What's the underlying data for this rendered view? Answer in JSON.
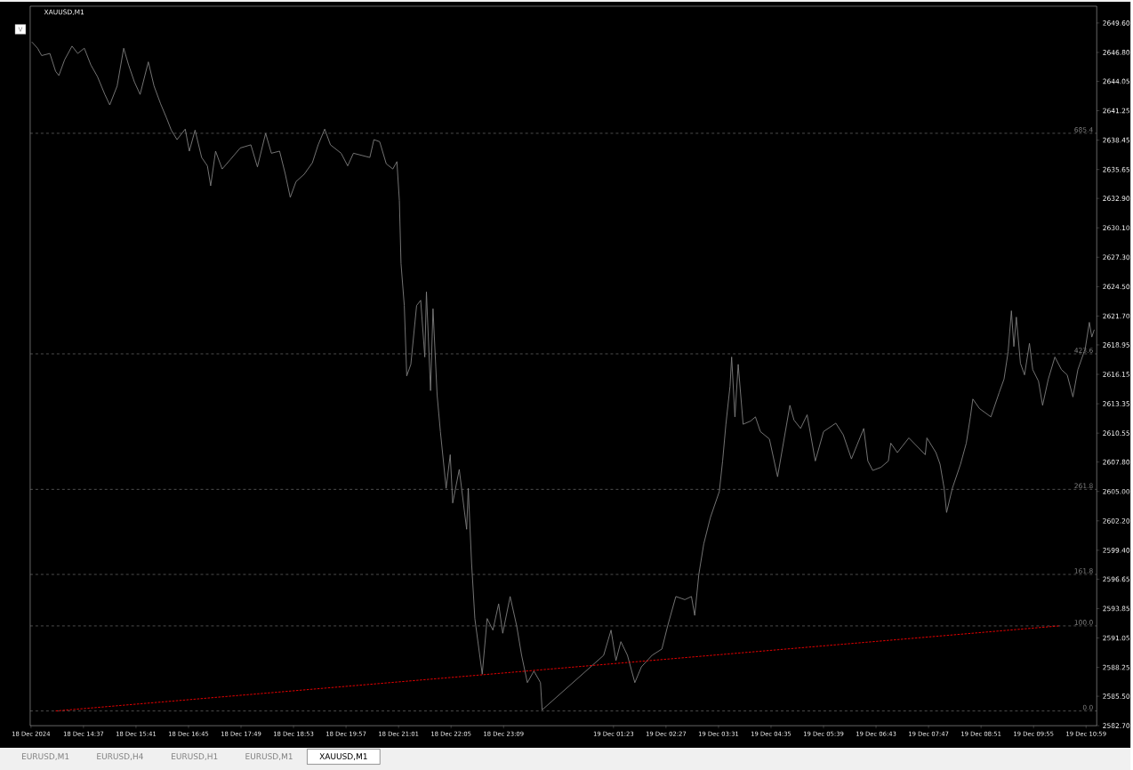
{
  "chart_data": {
    "type": "line",
    "title": "XAUUSD,M1",
    "xlim": [
      "2024-12-18T13:32",
      "2024-12-19T11:12"
    ],
    "ylim": [
      2582.7,
      2651.2
    ],
    "xticks": [
      {
        "value": "2024-12-18T13:33",
        "label": "18 Dec 2024"
      },
      {
        "value": "2024-12-18T14:37",
        "label": "18 Dec 14:37"
      },
      {
        "value": "2024-12-18T15:41",
        "label": "18 Dec 15:41"
      },
      {
        "value": "2024-12-18T16:45",
        "label": "18 Dec 16:45"
      },
      {
        "value": "2024-12-18T17:49",
        "label": "18 Dec 17:49"
      },
      {
        "value": "2024-12-18T18:53",
        "label": "18 Dec 18:53"
      },
      {
        "value": "2024-12-18T19:57",
        "label": "18 Dec 19:57"
      },
      {
        "value": "2024-12-18T21:01",
        "label": "18 Dec 21:01"
      },
      {
        "value": "2024-12-18T22:05",
        "label": "18 Dec 22:05"
      },
      {
        "value": "2024-12-18T23:09",
        "label": "18 Dec 23:09"
      },
      {
        "value": "2024-12-19T01:23",
        "label": "19 Dec 01:23"
      },
      {
        "value": "2024-12-19T02:27",
        "label": "19 Dec 02:27"
      },
      {
        "value": "2024-12-19T03:31",
        "label": "19 Dec 03:31"
      },
      {
        "value": "2024-12-19T04:35",
        "label": "19 Dec 04:35"
      },
      {
        "value": "2024-12-19T05:39",
        "label": "19 Dec 05:39"
      },
      {
        "value": "2024-12-19T06:43",
        "label": "19 Dec 06:43"
      },
      {
        "value": "2024-12-19T07:47",
        "label": "19 Dec 07:47"
      },
      {
        "value": "2024-12-19T08:51",
        "label": "19 Dec 08:51"
      },
      {
        "value": "2024-12-19T09:55",
        "label": "19 Dec 09:55"
      },
      {
        "value": "2024-12-19T10:59",
        "label": "19 Dec 10:59"
      }
    ],
    "yticks": [
      {
        "value": 2649.6,
        "label": "2649.60"
      },
      {
        "value": 2646.8,
        "label": "2646.80"
      },
      {
        "value": 2644.05,
        "label": "2644.05"
      },
      {
        "value": 2641.25,
        "label": "2641.25"
      },
      {
        "value": 2638.45,
        "label": "2638.45"
      },
      {
        "value": 2635.65,
        "label": "2635.65"
      },
      {
        "value": 2632.9,
        "label": "2632.90"
      },
      {
        "value": 2630.1,
        "label": "2630.10"
      },
      {
        "value": 2627.3,
        "label": "2627.30"
      },
      {
        "value": 2624.5,
        "label": "2624.50"
      },
      {
        "value": 2621.7,
        "label": "2621.70"
      },
      {
        "value": 2618.95,
        "label": "2618.95"
      },
      {
        "value": 2616.15,
        "label": "2616.15"
      },
      {
        "value": 2613.35,
        "label": "2613.35"
      },
      {
        "value": 2610.55,
        "label": "2610.55"
      },
      {
        "value": 2607.8,
        "label": "2607.80"
      },
      {
        "value": 2605.0,
        "label": "2605.00"
      },
      {
        "value": 2602.2,
        "label": "2602.20"
      },
      {
        "value": 2599.4,
        "label": "2599.40"
      },
      {
        "value": 2596.65,
        "label": "2596.65"
      },
      {
        "value": 2593.85,
        "label": "2593.85"
      },
      {
        "value": 2591.05,
        "label": "2591.05"
      },
      {
        "value": 2588.25,
        "label": "2588.25"
      },
      {
        "value": 2585.5,
        "label": "2585.50"
      },
      {
        "value": 2582.7,
        "label": "2582.70"
      }
    ],
    "series": [
      {
        "color": "#808080",
        "x": [
          "2024-12-18T13:34",
          "2024-12-18T13:41",
          "2024-12-18T13:46",
          "2024-12-18T13:56",
          "2024-12-18T14:03",
          "2024-12-18T14:07",
          "2024-12-18T14:14",
          "2024-12-18T14:23",
          "2024-12-18T14:30",
          "2024-12-18T14:38",
          "2024-12-18T14:46",
          "2024-12-18T14:54",
          "2024-12-18T15:03",
          "2024-12-18T15:09",
          "2024-12-18T15:18",
          "2024-12-18T15:26",
          "2024-12-18T15:32",
          "2024-12-18T15:39",
          "2024-12-18T15:46",
          "2024-12-18T15:56",
          "2024-12-18T16:03",
          "2024-12-18T16:11",
          "2024-12-18T16:18",
          "2024-12-18T16:24",
          "2024-12-18T16:31",
          "2024-12-18T16:41",
          "2024-12-18T16:46",
          "2024-12-18T16:53",
          "2024-12-18T17:01",
          "2024-12-18T17:08",
          "2024-12-18T17:12",
          "2024-12-18T17:18",
          "2024-12-18T17:26",
          "2024-12-18T17:36",
          "2024-12-18T17:48",
          "2024-12-18T18:01",
          "2024-12-18T18:09",
          "2024-12-18T18:19",
          "2024-12-18T18:26",
          "2024-12-18T18:36",
          "2024-12-18T18:43",
          "2024-12-18T18:49",
          "2024-12-18T18:56",
          "2024-12-18T19:06",
          "2024-12-18T19:16",
          "2024-12-18T19:23",
          "2024-12-18T19:31",
          "2024-12-18T19:38",
          "2024-12-18T19:51",
          "2024-12-18T19:59",
          "2024-12-18T20:06",
          "2024-12-18T20:16",
          "2024-12-18T20:26",
          "2024-12-18T20:31",
          "2024-12-18T20:38",
          "2024-12-18T20:46",
          "2024-12-18T20:54",
          "2024-12-18T20:59",
          "2024-12-18T21:02",
          "2024-12-18T21:04",
          "2024-12-18T21:08",
          "2024-12-18T21:11",
          "2024-12-18T21:16",
          "2024-12-18T21:23",
          "2024-12-18T21:28",
          "2024-12-18T21:33",
          "2024-12-18T21:35",
          "2024-12-18T21:40",
          "2024-12-18T21:43",
          "2024-12-18T21:48",
          "2024-12-18T21:52",
          "2024-12-18T21:59",
          "2024-12-18T22:04",
          "2024-12-18T22:07",
          "2024-12-18T22:15",
          "2024-12-18T22:24",
          "2024-12-18T22:26",
          "2024-12-18T22:30",
          "2024-12-18T22:34",
          "2024-12-18T22:43",
          "2024-12-18T22:49",
          "2024-12-18T22:56",
          "2024-12-18T23:03",
          "2024-12-18T23:08",
          "2024-12-18T23:17",
          "2024-12-18T23:25",
          "2024-12-18T23:31",
          "2024-12-18T23:38",
          "2024-12-18T23:46",
          "2024-12-18T23:54",
          "2024-12-18T23:56",
          "2024-12-19T01:11",
          "2024-12-19T01:20",
          "2024-12-19T01:26",
          "2024-12-19T01:32",
          "2024-12-19T01:40",
          "2024-12-19T01:49",
          "2024-12-19T01:57",
          "2024-12-19T02:10",
          "2024-12-19T02:22",
          "2024-12-19T02:29",
          "2024-12-19T02:39",
          "2024-12-19T02:50",
          "2024-12-19T02:58",
          "2024-12-19T03:02",
          "2024-12-19T03:07",
          "2024-12-19T03:13",
          "2024-12-19T03:21",
          "2024-12-19T03:32",
          "2024-12-19T03:36",
          "2024-12-19T03:40",
          "2024-12-19T03:45",
          "2024-12-19T03:47",
          "2024-12-19T03:51",
          "2024-12-19T03:55",
          "2024-12-19T04:01",
          "2024-12-19T04:10",
          "2024-12-19T04:16",
          "2024-12-19T04:22",
          "2024-12-19T04:33",
          "2024-12-19T04:43",
          "2024-12-19T04:58",
          "2024-12-19T05:03",
          "2024-12-19T05:11",
          "2024-12-19T05:19",
          "2024-12-19T05:29",
          "2024-12-19T05:39",
          "2024-12-19T05:54",
          "2024-12-19T06:03",
          "2024-12-19T06:13",
          "2024-12-19T06:28",
          "2024-12-19T06:33",
          "2024-12-19T06:39",
          "2024-12-19T06:49",
          "2024-12-19T06:58",
          "2024-12-19T07:01",
          "2024-12-19T07:09",
          "2024-12-19T07:23",
          "2024-12-19T07:33",
          "2024-12-19T07:43",
          "2024-12-19T07:45",
          "2024-12-19T07:56",
          "2024-12-19T08:01",
          "2024-12-19T08:06",
          "2024-12-19T08:09",
          "2024-12-19T08:16",
          "2024-12-19T08:26",
          "2024-12-19T08:33",
          "2024-12-19T08:38",
          "2024-12-19T08:41",
          "2024-12-19T08:49",
          "2024-12-19T09:03",
          "2024-12-19T09:13",
          "2024-12-19T09:19",
          "2024-12-19T09:24",
          "2024-12-19T09:28",
          "2024-12-19T09:31",
          "2024-12-19T09:34",
          "2024-12-19T09:39",
          "2024-12-19T09:44",
          "2024-12-19T09:50",
          "2024-12-19T09:54",
          "2024-12-19T10:01",
          "2024-12-19T10:06",
          "2024-12-19T10:13",
          "2024-12-19T10:21",
          "2024-12-19T10:29",
          "2024-12-19T10:36",
          "2024-12-19T10:43",
          "2024-12-19T10:49",
          "2024-12-19T10:58",
          "2024-12-19T11:03",
          "2024-12-19T11:06",
          "2024-12-19T11:09"
        ],
        "values": [
          2647.8,
          2647.2,
          2646.5,
          2646.7,
          2645.0,
          2644.6,
          2646.1,
          2647.4,
          2646.7,
          2647.2,
          2645.6,
          2644.5,
          2642.8,
          2641.8,
          2643.6,
          2647.2,
          2645.6,
          2644.0,
          2642.8,
          2645.9,
          2643.6,
          2641.9,
          2640.6,
          2639.4,
          2638.5,
          2639.5,
          2637.4,
          2639.4,
          2636.8,
          2636.0,
          2634.1,
          2637.4,
          2635.7,
          2636.6,
          2637.7,
          2638.0,
          2635.9,
          2639.1,
          2637.2,
          2637.4,
          2635.2,
          2633.0,
          2634.5,
          2635.2,
          2636.3,
          2638.0,
          2639.5,
          2638.0,
          2637.2,
          2636.0,
          2637.2,
          2637.0,
          2636.8,
          2638.5,
          2638.3,
          2636.2,
          2635.7,
          2636.4,
          2632.7,
          2626.7,
          2622.7,
          2616.0,
          2617.1,
          2622.7,
          2623.2,
          2617.8,
          2624.0,
          2614.6,
          2622.4,
          2614.2,
          2610.7,
          2605.3,
          2608.5,
          2603.9,
          2607.1,
          2601.4,
          2605.3,
          2598.2,
          2592.9,
          2587.6,
          2592.9,
          2591.8,
          2594.3,
          2591.5,
          2595.0,
          2592.2,
          2589.4,
          2586.8,
          2587.9,
          2586.8,
          2584.2,
          2589.4,
          2591.8,
          2588.9,
          2590.7,
          2589.4,
          2586.8,
          2588.3,
          2589.4,
          2590.0,
          2592.2,
          2595.0,
          2594.7,
          2595.0,
          2593.2,
          2597.1,
          2600.0,
          2602.5,
          2605.0,
          2607.9,
          2611.4,
          2615.0,
          2617.8,
          2612.1,
          2617.1,
          2611.4,
          2611.7,
          2612.1,
          2610.7,
          2610.0,
          2606.4,
          2613.2,
          2611.8,
          2611.0,
          2612.3,
          2607.9,
          2610.7,
          2611.5,
          2610.4,
          2608.1,
          2611.0,
          2607.9,
          2607.0,
          2607.3,
          2607.9,
          2609.6,
          2608.7,
          2610.1,
          2609.3,
          2608.5,
          2610.1,
          2608.7,
          2607.6,
          2605.3,
          2603.0,
          2605.3,
          2607.6,
          2609.6,
          2612.1,
          2613.8,
          2612.9,
          2612.1,
          2614.4,
          2615.7,
          2618.3,
          2622.2,
          2618.8,
          2621.6,
          2617.2,
          2616.1,
          2619.1,
          2616.6,
          2615.5,
          2613.2,
          2615.7,
          2617.8,
          2616.6,
          2616.1,
          2614.0,
          2616.6,
          2618.6,
          2621.1,
          2619.7,
          2620.4
        ]
      },
      {
        "type": "line",
        "color": "#ff0000",
        "line_style": "dotted",
        "x": [
          "2024-12-18T14:03",
          "2024-12-19T10:26"
        ],
        "values": [
          2584.1,
          2592.2
        ]
      }
    ],
    "ref_lines": [
      {
        "axis": "y",
        "value": 2639.1,
        "color": "#808080",
        "line_style": "dashed"
      },
      {
        "axis": "y",
        "value": 2618.1,
        "color": "#808080",
        "line_style": "dashed"
      },
      {
        "axis": "y",
        "value": 2605.2,
        "color": "#808080",
        "line_style": "dashed"
      },
      {
        "axis": "y",
        "value": 2597.1,
        "color": "#808080",
        "line_style": "dashed"
      },
      {
        "axis": "y",
        "value": 2592.2,
        "color": "#808080",
        "line_style": "dashed"
      },
      {
        "axis": "y",
        "value": 2584.1,
        "color": "#808080",
        "line_style": "dashed"
      }
    ],
    "annotations": [
      "V",
      "EURUSD,M1",
      "EURUSD,H4",
      "EURUSD,H1",
      "EURUSD,M1",
      "XAUUSD,M1",
      {
        "text": "685.4",
        "x": "2024-12-19T11:09",
        "y": 2639.1
      },
      {
        "text": "423.6",
        "x": "2024-12-19T11:09",
        "y": 2618.1
      },
      {
        "text": "261.8",
        "x": "2024-12-19T11:09",
        "y": 2605.2
      },
      {
        "text": "161.8",
        "x": "2024-12-19T11:09",
        "y": 2597.1
      },
      {
        "text": "100.0",
        "x": "2024-12-19T11:09",
        "y": 2592.2
      },
      {
        "text": "0.0",
        "x": "2024-12-19T11:09",
        "y": 2584.1
      }
    ]
  }
}
